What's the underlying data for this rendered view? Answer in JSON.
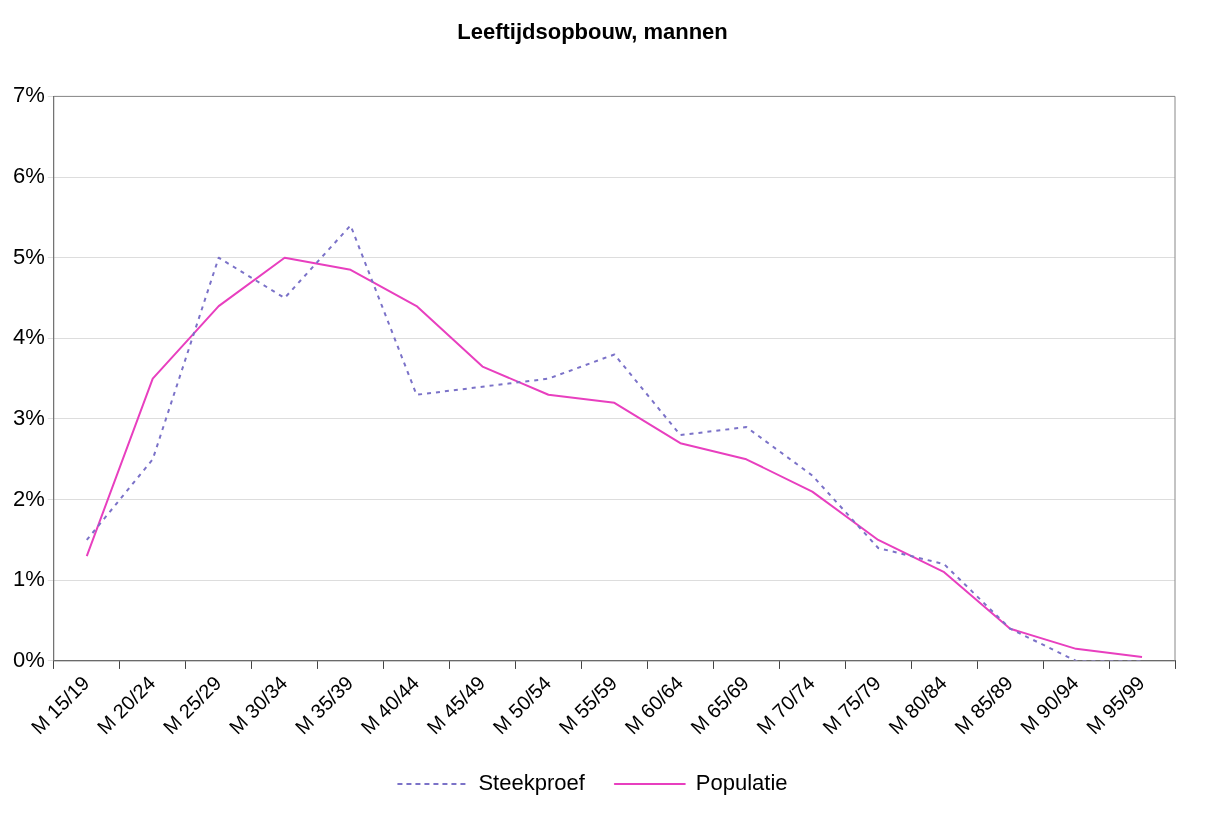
{
  "chart_data": {
    "type": "line",
    "title": "Leeftijdsopbouw, mannen",
    "categories": [
      "M 15/19",
      "M 20/24",
      "M 25/29",
      "M 30/34",
      "M 35/39",
      "M 40/44",
      "M 45/49",
      "M 50/54",
      "M 55/59",
      "M 60/64",
      "M 65/69",
      "M 70/74",
      "M 75/79",
      "M 80/84",
      "M 85/89",
      "M 90/94",
      "M 95/99"
    ],
    "series": [
      {
        "name": "Steekproef",
        "color": "#7b72c8",
        "line_style": "dotted",
        "values": [
          1.5,
          2.5,
          5.0,
          4.5,
          5.4,
          3.3,
          3.4,
          3.5,
          3.8,
          2.8,
          2.9,
          2.3,
          1.4,
          1.2,
          0.4,
          0.0,
          0.0
        ]
      },
      {
        "name": "Populatie",
        "color": "#e83fbf",
        "line_style": "solid",
        "values": [
          1.3,
          3.5,
          4.4,
          5.0,
          4.85,
          4.4,
          3.65,
          3.3,
          3.2,
          2.7,
          2.5,
          2.1,
          1.5,
          1.1,
          0.4,
          0.15,
          0.05
        ]
      }
    ],
    "ylim": [
      0,
      7
    ],
    "yticks": [
      {
        "value": 0,
        "label": "0%"
      },
      {
        "value": 1,
        "label": "1%"
      },
      {
        "value": 2,
        "label": "2%"
      },
      {
        "value": 3,
        "label": "3%"
      },
      {
        "value": 4,
        "label": "4%"
      },
      {
        "value": 5,
        "label": "5%"
      },
      {
        "value": 6,
        "label": "6%"
      },
      {
        "value": 7,
        "label": "7%"
      }
    ],
    "grid": "y",
    "legend": "bottom",
    "marker": "none"
  }
}
